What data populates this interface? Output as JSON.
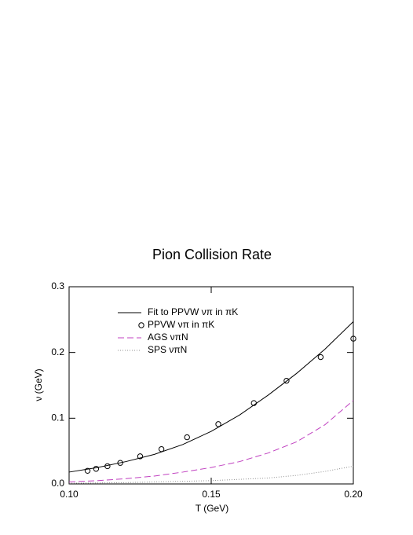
{
  "chart_data": {
    "type": "line",
    "title": "Pion Collision Rate",
    "xlabel": "T (GeV)",
    "ylabel": "ν (GeV)",
    "xlim": [
      0.1,
      0.2
    ],
    "ylim": [
      0,
      0.3
    ],
    "xticks": [
      {
        "value": 0.1,
        "label": "0.10"
      },
      {
        "value": 0.15,
        "label": "0.15"
      },
      {
        "value": 0.2,
        "label": "0.20"
      }
    ],
    "yticks": [
      {
        "value": 0,
        "label": "0.0"
      },
      0.1,
      0.2,
      0.3
    ],
    "legend": "upper left",
    "series": [
      {
        "name": "Fit to PPVW νπ in πK",
        "color": "#000000",
        "style": "solid",
        "x": [
          0.1,
          0.11,
          0.12,
          0.13,
          0.14,
          0.15,
          0.16,
          0.17,
          0.18,
          0.19,
          0.2
        ],
        "values": [
          0.018,
          0.025,
          0.034,
          0.045,
          0.06,
          0.08,
          0.105,
          0.135,
          0.168,
          0.205,
          0.247
        ]
      },
      {
        "name": "PPVW νπ in πK",
        "color": "#000000",
        "style": "markers",
        "x": [
          0.1065,
          0.1095,
          0.1135,
          0.118,
          0.125,
          0.1325,
          0.1415,
          0.1525,
          0.165,
          0.1765,
          0.1885,
          0.2
        ],
        "values": [
          0.02,
          0.023,
          0.027,
          0.032,
          0.042,
          0.053,
          0.071,
          0.091,
          0.123,
          0.157,
          0.193,
          0.221
        ]
      },
      {
        "name": "AGS νπN",
        "color": "#c040c0",
        "style": "dashed",
        "x": [
          0.1,
          0.11,
          0.12,
          0.13,
          0.14,
          0.15,
          0.16,
          0.17,
          0.18,
          0.19,
          0.2
        ],
        "values": [
          0.003,
          0.005,
          0.008,
          0.012,
          0.018,
          0.025,
          0.034,
          0.047,
          0.064,
          0.09,
          0.127
        ]
      },
      {
        "name": "SPS νπN",
        "color": "#909090",
        "style": "dotted",
        "x": [
          0.1,
          0.11,
          0.12,
          0.13,
          0.14,
          0.15,
          0.16,
          0.17,
          0.18,
          0.19,
          0.2
        ],
        "values": [
          0.001,
          0.0015,
          0.002,
          0.003,
          0.004,
          0.005,
          0.007,
          0.009,
          0.013,
          0.019,
          0.027
        ]
      }
    ]
  }
}
